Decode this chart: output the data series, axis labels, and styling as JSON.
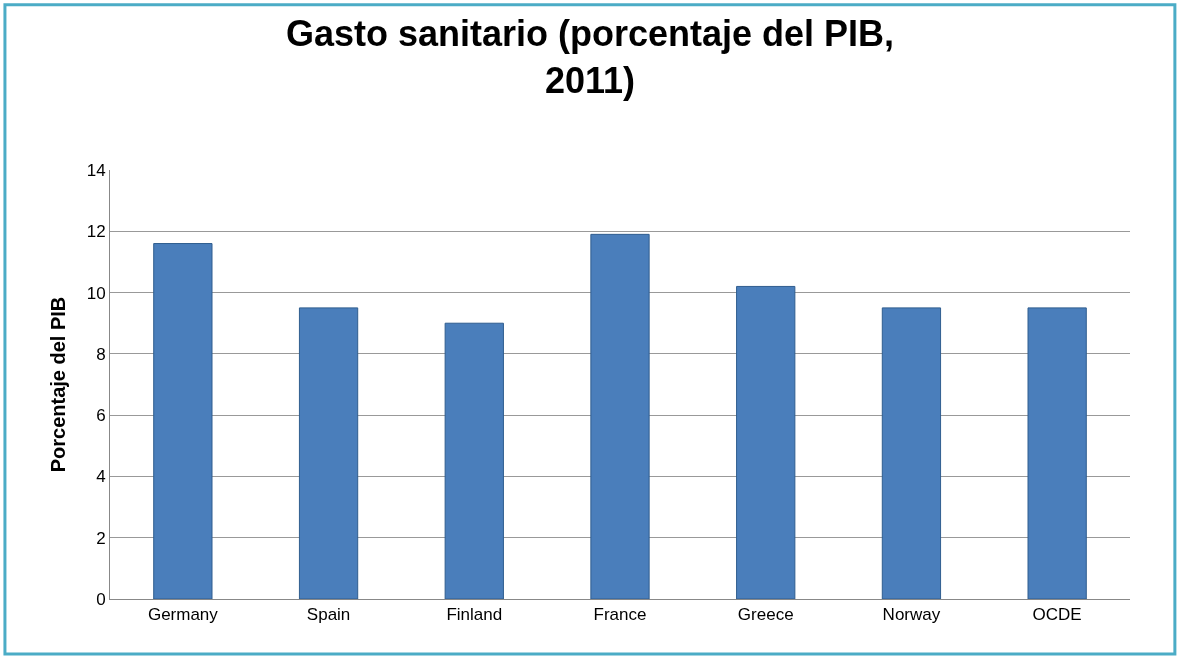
{
  "chart_data": {
    "type": "bar",
    "title": "Gasto sanitario (porcentaje del PIB, 2011)",
    "ylabel": "Porcentaje del PIB",
    "categories": [
      "Germany",
      "Spain",
      "Finland",
      "France",
      "Greece",
      "Norway",
      "OCDE"
    ],
    "values": [
      11.6,
      9.5,
      9.0,
      11.9,
      10.2,
      9.5,
      9.5
    ],
    "color": "#4a7ebb",
    "ylim": [
      0,
      14
    ],
    "yticks": [
      0,
      2,
      4,
      6,
      8,
      10,
      12,
      14
    ],
    "grid": "y"
  }
}
